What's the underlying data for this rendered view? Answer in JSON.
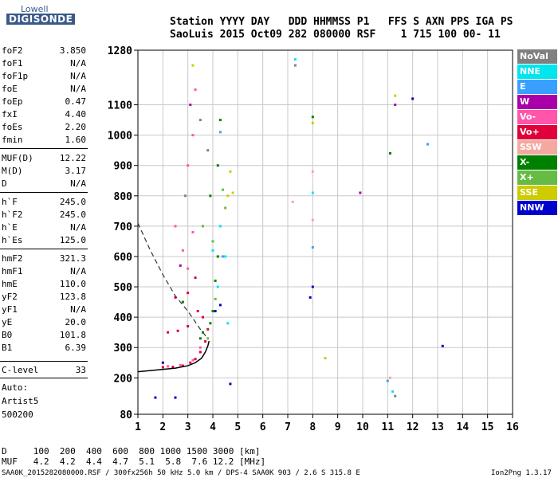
{
  "logo": {
    "line1": "Lowell",
    "line2": "DIGISONDE"
  },
  "header": {
    "line1": "Station YYYY DAY   DDD HHMMSS P1   FFS S AXN PPS IGA PS",
    "line2": "SaoLuis 2015 Oct09 282 080000 RSF    1 715 100 00- 11"
  },
  "params": [
    {
      "name": "foF2",
      "value": "3.850"
    },
    {
      "name": "foF1",
      "value": "N/A"
    },
    {
      "name": "foF1p",
      "value": "N/A"
    },
    {
      "name": "foE",
      "value": "N/A"
    },
    {
      "name": "foEp",
      "value": "0.47"
    },
    {
      "name": "fxI",
      "value": "4.40"
    },
    {
      "name": "foEs",
      "value": "2.20"
    },
    {
      "name": "fmin",
      "value": "1.60"
    },
    {
      "name": "MUF(D)",
      "value": "12.22"
    },
    {
      "name": "M(D)",
      "value": "3.17"
    },
    {
      "name": "D",
      "value": "N/A"
    },
    {
      "name": "h`F",
      "value": "245.0"
    },
    {
      "name": "h`F2",
      "value": "245.0"
    },
    {
      "name": "h`E",
      "value": "N/A"
    },
    {
      "name": "h`Es",
      "value": "125.0"
    },
    {
      "name": "hmF2",
      "value": "321.3"
    },
    {
      "name": "hmF1",
      "value": "N/A"
    },
    {
      "name": "hmE",
      "value": "110.0"
    },
    {
      "name": "yF2",
      "value": "123.8"
    },
    {
      "name": "yF1",
      "value": "N/A"
    },
    {
      "name": "yE",
      "value": "20.0"
    },
    {
      "name": "B0",
      "value": "101.8"
    },
    {
      "name": "B1",
      "value": "6.39"
    },
    {
      "name": "C-level",
      "value": "33"
    }
  ],
  "auto": {
    "line1": "Auto:",
    "line2": "Artist5",
    "line3": "500200"
  },
  "legend": [
    {
      "label": "NoVal",
      "color": "#808080"
    },
    {
      "label": "NNE",
      "color": "#00e5ee"
    },
    {
      "label": "E",
      "color": "#3aa0ff"
    },
    {
      "label": "W",
      "color": "#aa00aa"
    },
    {
      "label": "Vo-",
      "color": "#ff55aa"
    },
    {
      "label": "Vo+",
      "color": "#e0003a"
    },
    {
      "label": "SSW",
      "color": "#f4a8a0"
    },
    {
      "label": "X-",
      "color": "#008000"
    },
    {
      "label": "X+",
      "color": "#66bb44"
    },
    {
      "label": "SSE",
      "color": "#cccc00"
    },
    {
      "label": "NNW",
      "color": "#0000cc"
    }
  ],
  "footer": {
    "line1": "D     100  200  400  600  800 1000 1500 3000 [km]",
    "line2": "MUF   4.2  4.2  4.4  4.7  5.1  5.8  7.6 12.2 [MHz]",
    "bottom_left": "SAA0K_2015282080000.RSF / 300fx256h 50 kHz 5.0 km / DPS-4 SAA0K 903 / 2.6 S 315.8 E",
    "bottom_right": "Ion2Png 1.3.17"
  },
  "chart_data": {
    "type": "scatter",
    "title": "",
    "xlabel": "",
    "ylabel": "",
    "xlim": [
      1,
      16
    ],
    "ylim": [
      80,
      1280
    ],
    "x_ticks": [
      1,
      2,
      3,
      4,
      5,
      6,
      7,
      8,
      9,
      10,
      11,
      12,
      13,
      14,
      15,
      16
    ],
    "y_ticks": [
      80,
      200,
      300,
      400,
      500,
      600,
      700,
      800,
      900,
      1000,
      1100,
      1280
    ],
    "grid": true,
    "legend_position": "right",
    "series": [
      {
        "name": "Vo+",
        "color": "#e0003a",
        "points": [
          [
            2.0,
            235
          ],
          [
            2.4,
            236
          ],
          [
            2.8,
            240
          ],
          [
            3.1,
            250
          ],
          [
            3.3,
            262
          ],
          [
            3.5,
            285
          ],
          [
            3.7,
            320
          ],
          [
            3.8,
            360
          ],
          [
            2.2,
            350
          ],
          [
            2.6,
            355
          ],
          [
            3.0,
            370
          ],
          [
            3.4,
            420
          ],
          [
            2.5,
            465
          ],
          [
            3.0,
            480
          ],
          [
            3.3,
            530
          ],
          [
            3.6,
            400
          ]
        ]
      },
      {
        "name": "Vo-",
        "color": "#ff55aa",
        "points": [
          [
            2.2,
            238
          ],
          [
            2.7,
            242
          ],
          [
            3.2,
            258
          ],
          [
            3.5,
            300
          ],
          [
            3.0,
            560
          ],
          [
            2.8,
            620
          ],
          [
            2.5,
            700
          ],
          [
            3.2,
            680
          ],
          [
            3.0,
            900
          ],
          [
            3.2,
            1000
          ],
          [
            3.3,
            1150
          ]
        ]
      },
      {
        "name": "X-",
        "color": "#008000",
        "points": [
          [
            3.6,
            350
          ],
          [
            3.9,
            380
          ],
          [
            4.0,
            420
          ],
          [
            4.1,
            520
          ],
          [
            4.2,
            600
          ],
          [
            3.9,
            800
          ],
          [
            4.2,
            900
          ],
          [
            4.3,
            1050
          ],
          [
            8.0,
            1060
          ],
          [
            11.1,
            940
          ],
          [
            2.8,
            450
          ],
          [
            3.5,
            330
          ]
        ]
      },
      {
        "name": "X+",
        "color": "#66bb44",
        "points": [
          [
            3.8,
            330
          ],
          [
            4.1,
            460
          ],
          [
            4.4,
            820
          ],
          [
            4.5,
            760
          ],
          [
            4.0,
            650
          ],
          [
            3.6,
            700
          ]
        ]
      },
      {
        "name": "SSE",
        "color": "#cccc00",
        "points": [
          [
            4.6,
            800
          ],
          [
            4.8,
            810
          ],
          [
            4.7,
            880
          ],
          [
            3.2,
            1230
          ],
          [
            8.0,
            1040
          ],
          [
            8.5,
            265
          ],
          [
            11.3,
            1130
          ]
        ]
      },
      {
        "name": "NNE",
        "color": "#00e5ee",
        "points": [
          [
            4.2,
            500
          ],
          [
            4.0,
            620
          ],
          [
            4.5,
            600
          ],
          [
            4.3,
            700
          ],
          [
            4.6,
            380
          ],
          [
            7.3,
            1250
          ],
          [
            8.0,
            810
          ],
          [
            11.2,
            155
          ]
        ]
      },
      {
        "name": "E",
        "color": "#3aa0ff",
        "points": [
          [
            4.3,
            1010
          ],
          [
            4.4,
            600
          ],
          [
            12.6,
            970
          ],
          [
            11.0,
            190
          ],
          [
            8.0,
            630
          ]
        ]
      },
      {
        "name": "W",
        "color": "#aa00aa",
        "points": [
          [
            2.7,
            570
          ],
          [
            3.1,
            1100
          ],
          [
            11.3,
            1100
          ],
          [
            9.9,
            810
          ]
        ]
      },
      {
        "name": "NNW",
        "color": "#0000cc",
        "points": [
          [
            4.1,
            420
          ],
          [
            4.3,
            440
          ],
          [
            2.0,
            250
          ],
          [
            1.7,
            135
          ],
          [
            2.5,
            135
          ],
          [
            4.7,
            180
          ],
          [
            12.0,
            1120
          ],
          [
            13.2,
            305
          ],
          [
            8.0,
            500
          ],
          [
            7.9,
            465
          ]
        ]
      },
      {
        "name": "SSW",
        "color": "#f4a8a0",
        "points": [
          [
            8.0,
            720
          ],
          [
            8.0,
            880
          ],
          [
            7.2,
            780
          ],
          [
            11.1,
            200
          ]
        ]
      },
      {
        "name": "NoVal",
        "color": "#808080",
        "points": [
          [
            3.5,
            1050
          ],
          [
            3.8,
            950
          ],
          [
            2.9,
            800
          ],
          [
            7.3,
            1230
          ],
          [
            11.3,
            140
          ]
        ]
      }
    ],
    "profile_curve": [
      [
        1.0,
        220
      ],
      [
        1.5,
        224
      ],
      [
        2.0,
        228
      ],
      [
        2.5,
        232
      ],
      [
        3.0,
        240
      ],
      [
        3.3,
        250
      ],
      [
        3.55,
        265
      ],
      [
        3.7,
        285
      ],
      [
        3.8,
        305
      ],
      [
        3.85,
        321.3
      ]
    ],
    "dashed_line": [
      [
        1.0,
        710
      ],
      [
        1.5,
        620
      ],
      [
        2.0,
        540
      ],
      [
        2.5,
        470
      ],
      [
        3.0,
        420
      ],
      [
        3.5,
        360
      ],
      [
        3.8,
        330
      ]
    ]
  }
}
